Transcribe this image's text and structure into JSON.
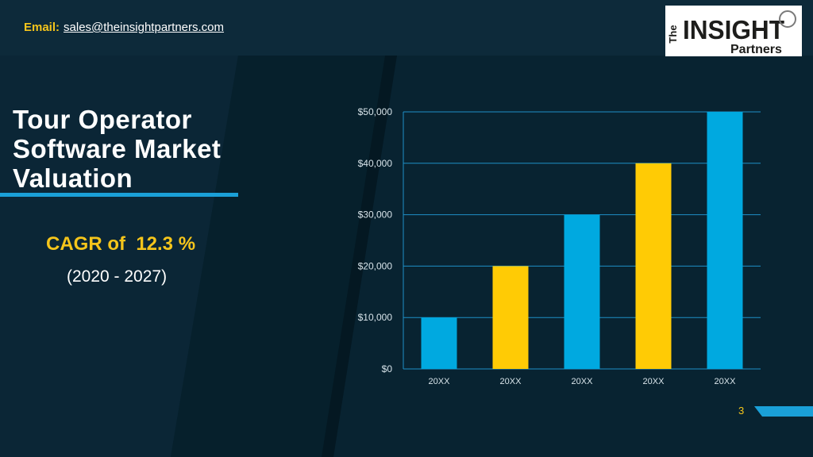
{
  "header": {
    "email_label": "Email:",
    "email_address": "sales@theinsightpartners.com"
  },
  "logo": {
    "line_the": "The",
    "line_insight": "INSIGHT",
    "line_partners": "Partners"
  },
  "slide": {
    "title": "Tour Operator Software Market Valuation",
    "cagr": "CAGR of  12.3 %",
    "period": "(2020 - 2027)",
    "page_number": "3"
  },
  "colors": {
    "background": "#07202e",
    "accent_blue": "#00a9e0",
    "accent_yellow": "#ffcb05",
    "gridline": "#1e8fc6"
  },
  "chart_data": {
    "type": "bar",
    "categories": [
      "20XX",
      "20XX",
      "20XX",
      "20XX",
      "20XX"
    ],
    "values": [
      10000,
      20000,
      30000,
      40000,
      50000
    ],
    "bar_colors": [
      "#00a9e0",
      "#ffcb05",
      "#00a9e0",
      "#ffcb05",
      "#00a9e0"
    ],
    "y_ticks": [
      "$0",
      "$10,000",
      "$20,000",
      "$30,000",
      "$40,000",
      "$50,000"
    ],
    "ylim": [
      0,
      50000
    ],
    "grid": true,
    "legend": "none"
  }
}
